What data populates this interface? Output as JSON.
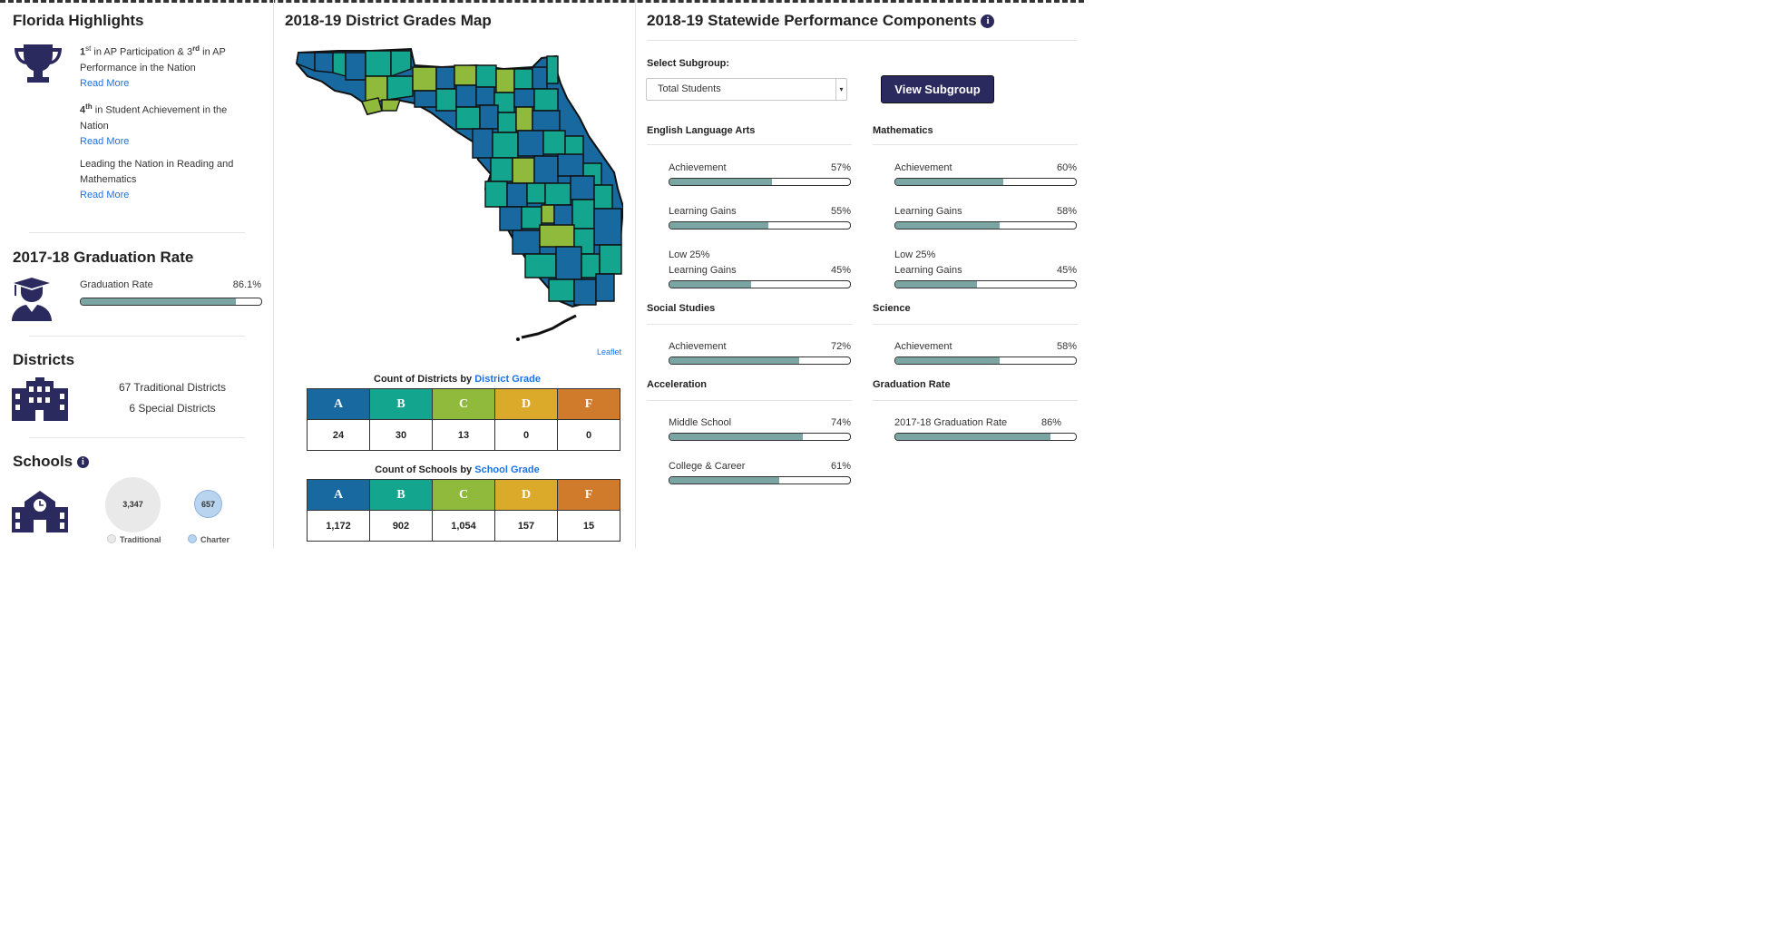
{
  "highlights": {
    "title": "Florida Highlights",
    "items": [
      {
        "pre": "1",
        "sup1": "st",
        "mid": " in AP Participation & 3",
        "sup2": "rd",
        "post": " in AP Performance in the Nation",
        "link": "Read More"
      },
      {
        "pre": "4",
        "sup1": "th",
        "mid": " in Student Achievement in the Nation",
        "link": "Read More"
      },
      {
        "text": "Leading the Nation in Reading and Mathematics",
        "link": "Read More"
      }
    ]
  },
  "graduation": {
    "title": "2017-18 Graduation Rate",
    "label": "Graduation Rate",
    "value_text": "86.1%",
    "value": 86.1
  },
  "districts": {
    "title": "Districts",
    "traditional": "67 Traditional Districts",
    "special": "6 Special Districts"
  },
  "schools": {
    "title": "Schools",
    "info": "i",
    "traditional_count": "3,347",
    "charter_count": "657",
    "traditional_label": "Traditional",
    "charter_label": "Charter"
  },
  "map": {
    "title": "2018-19 District Grades Map",
    "attribution": "Leaflet"
  },
  "district_counts": {
    "caption_pre": "Count of Districts by ",
    "caption_link": "District Grade",
    "grades": [
      "A",
      "B",
      "C",
      "D",
      "F"
    ],
    "values": [
      "24",
      "30",
      "13",
      "0",
      "0"
    ]
  },
  "school_counts": {
    "caption_pre": "Count of Schools by ",
    "caption_link": "School Grade",
    "grades": [
      "A",
      "B",
      "C",
      "D",
      "F"
    ],
    "values": [
      "1,172",
      "902",
      "1,054",
      "157",
      "15"
    ]
  },
  "grade_colors": {
    "A": "#1769a0",
    "B": "#14a58f",
    "C": "#8fba3c",
    "D": "#dcaa2a",
    "F": "#d07a2c"
  },
  "performance": {
    "title": "2018-19 Statewide Performance Components",
    "info": "i",
    "select_label": "Select Subgroup:",
    "select_value": "Total Students",
    "button": "View Subgroup",
    "sections": {
      "ela": {
        "title": "English Language Arts",
        "items": [
          {
            "label": "Achievement",
            "value_text": "57%",
            "value": 57
          },
          {
            "label": "Learning Gains",
            "value_text": "55%",
            "value": 55
          },
          {
            "label_top": "Low 25%",
            "label": "Learning Gains",
            "value_text": "45%",
            "value": 45
          }
        ]
      },
      "math": {
        "title": "Mathematics",
        "items": [
          {
            "label": "Achievement",
            "value_text": "60%",
            "value": 60
          },
          {
            "label": "Learning Gains",
            "value_text": "58%",
            "value": 58
          },
          {
            "label_top": "Low 25%",
            "label": "Learning Gains",
            "value_text": "45%",
            "value": 45
          }
        ]
      },
      "social": {
        "title": "Social Studies",
        "items": [
          {
            "label": "Achievement",
            "value_text": "72%",
            "value": 72
          }
        ]
      },
      "science": {
        "title": "Science",
        "items": [
          {
            "label": "Achievement",
            "value_text": "58%",
            "value": 58
          }
        ]
      },
      "accel": {
        "title": "Acceleration",
        "items": [
          {
            "label": "Middle School",
            "value_text": "74%",
            "value": 74
          },
          {
            "label": "College & Career",
            "value_text": "61%",
            "value": 61
          }
        ]
      },
      "grad": {
        "title": "Graduation Rate",
        "items": [
          {
            "label": "2017-18 Graduation Rate",
            "value_text": "86%",
            "value": 86
          }
        ]
      }
    }
  }
}
